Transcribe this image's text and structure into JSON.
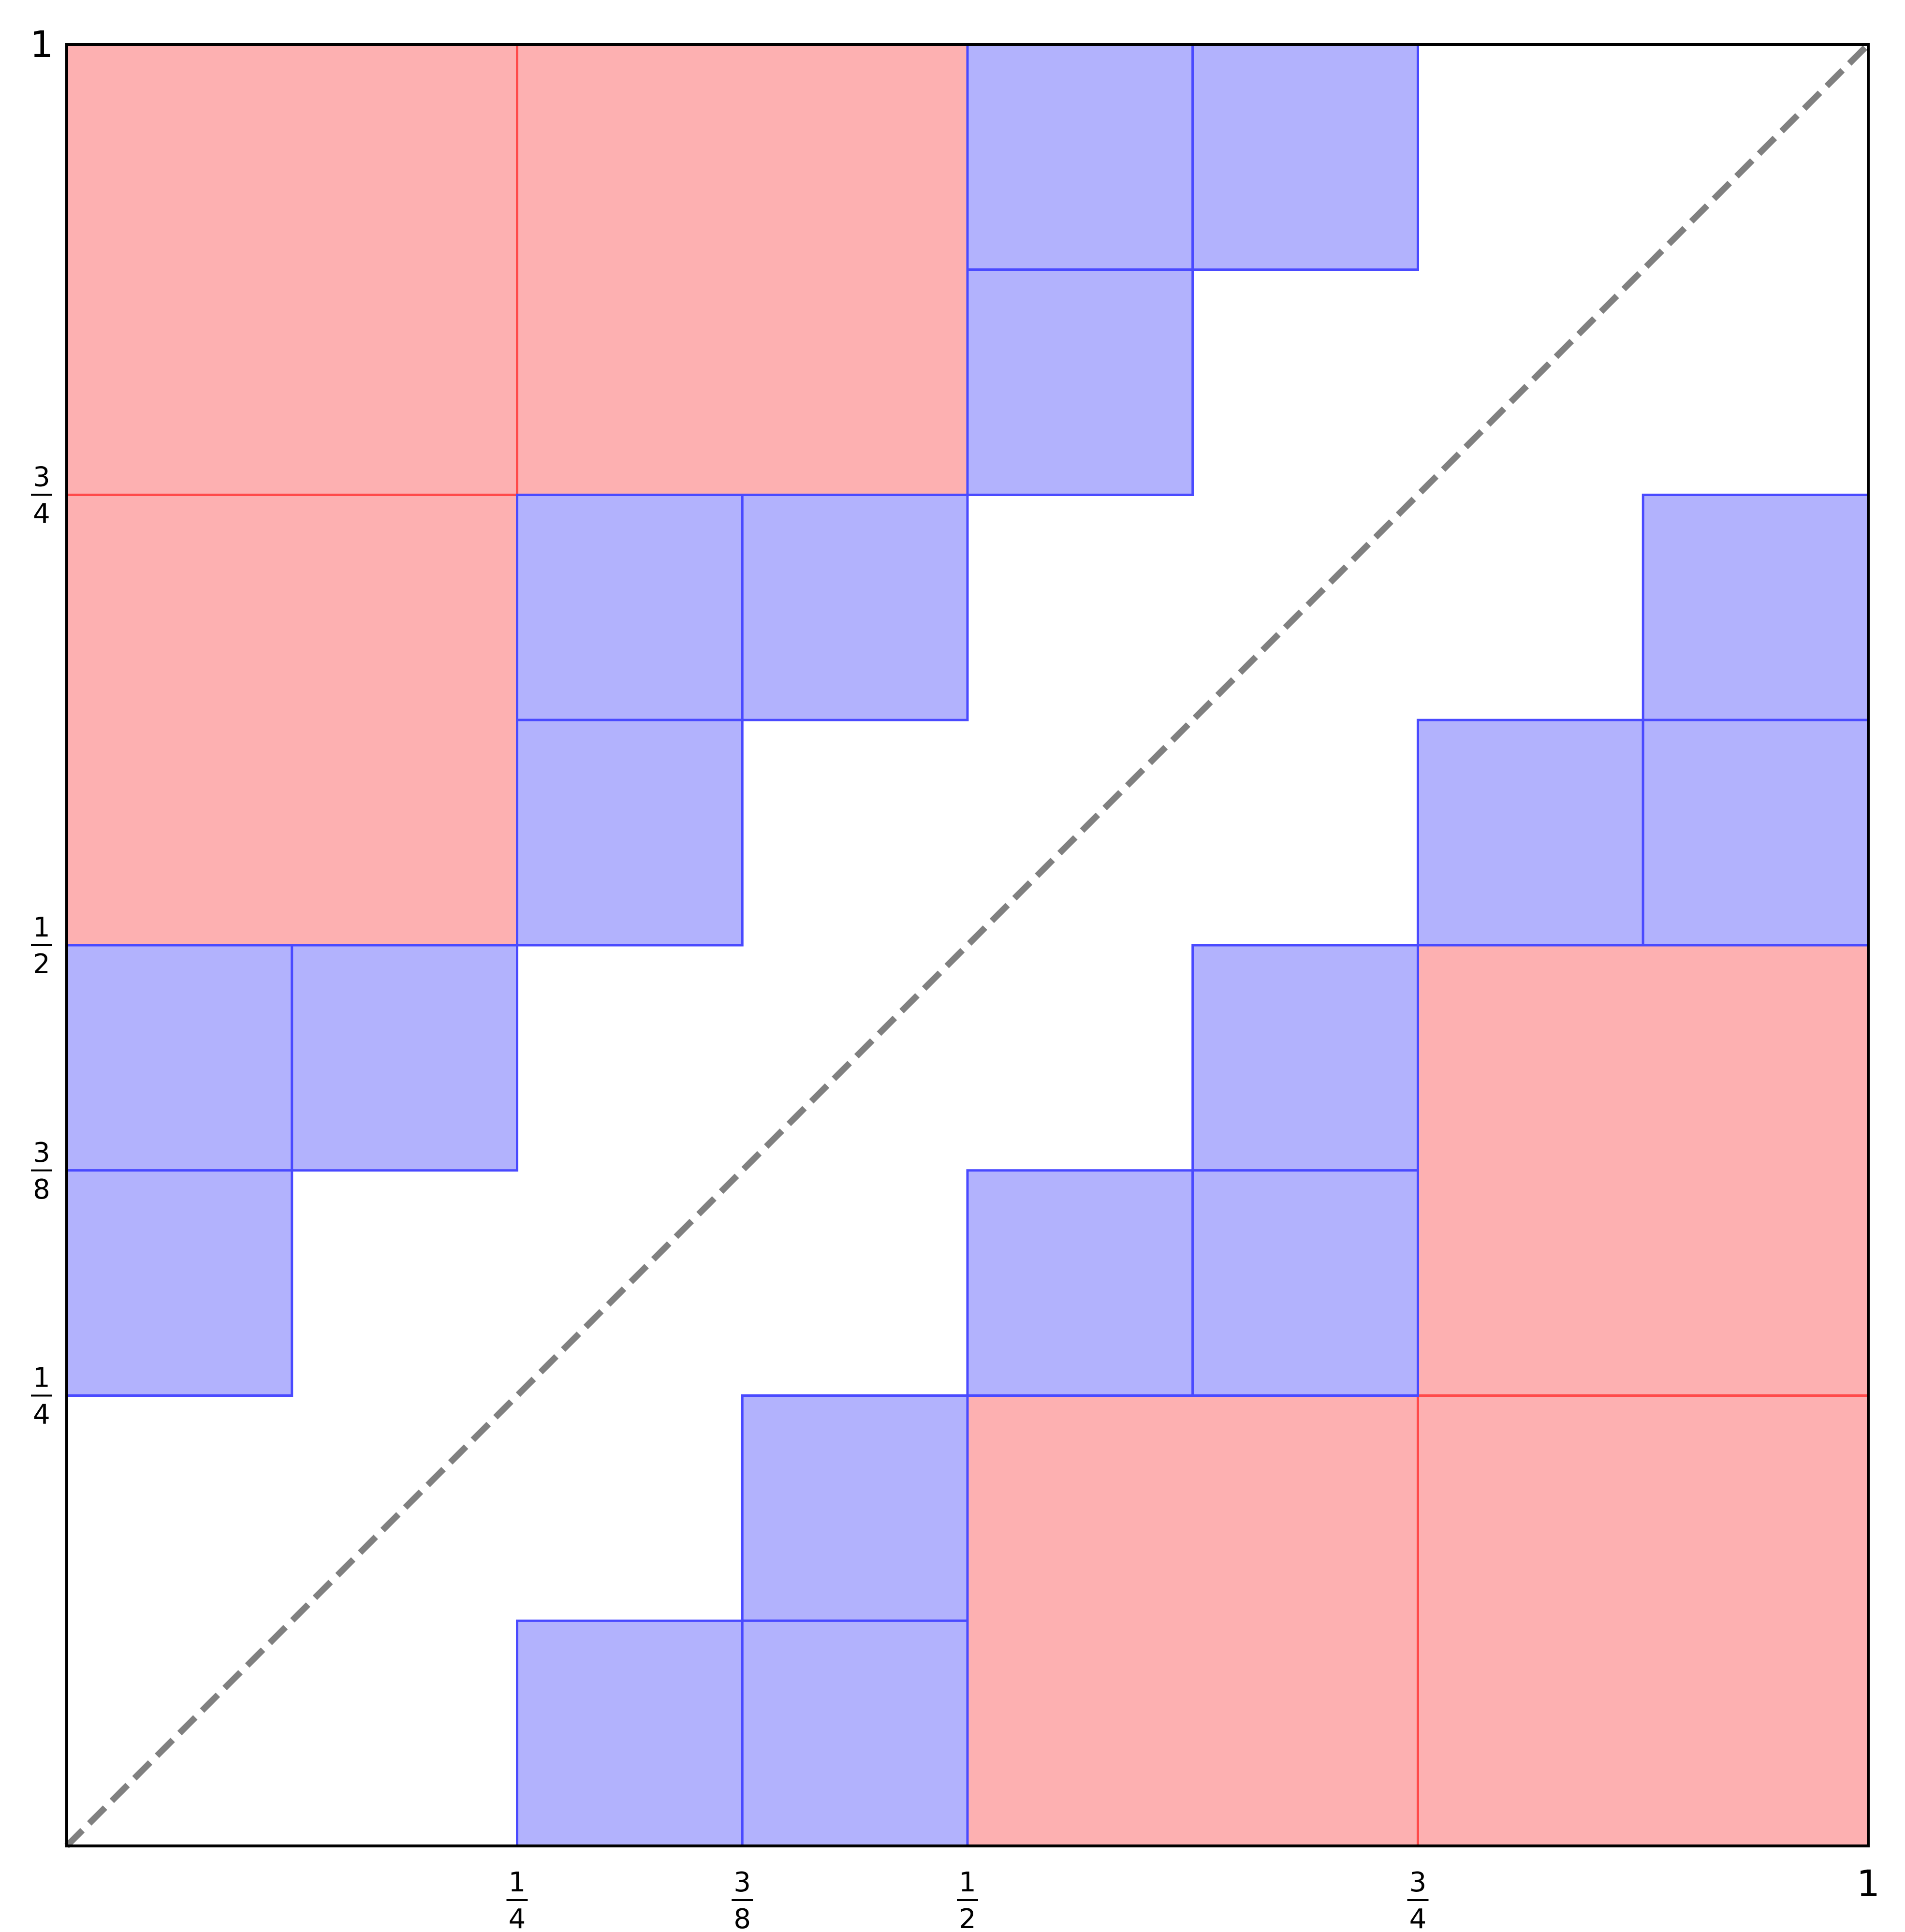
{
  "diagram": {
    "axis_min": 0,
    "axis_max": 1,
    "x_ticks": [
      {
        "value": 0.25,
        "num": "1",
        "den": "4"
      },
      {
        "value": 0.375,
        "num": "3",
        "den": "8"
      },
      {
        "value": 0.5,
        "num": "1",
        "den": "2"
      },
      {
        "value": 0.75,
        "num": "3",
        "den": "4"
      },
      {
        "value": 1,
        "label": "1"
      }
    ],
    "y_ticks": [
      {
        "value": 0.25,
        "num": "1",
        "den": "4"
      },
      {
        "value": 0.375,
        "num": "3",
        "den": "8"
      },
      {
        "value": 0.5,
        "num": "1",
        "den": "2"
      },
      {
        "value": 0.75,
        "num": "3",
        "den": "4"
      },
      {
        "value": 1,
        "label": "1"
      }
    ],
    "colors": {
      "red_fill": "#fdb0b1",
      "red_edge": "#ff4a4a",
      "blue_fill": "#b2b2fd",
      "blue_edge": "#4a4aff",
      "diagonal": "#808080",
      "frame": "#000000"
    },
    "red_squares": [
      {
        "x0": 0,
        "x1": 0.25,
        "y0": 0.75,
        "y1": 1
      },
      {
        "x0": 0.25,
        "x1": 0.5,
        "y0": 0.75,
        "y1": 1
      },
      {
        "x0": 0,
        "x1": 0.25,
        "y0": 0.5,
        "y1": 0.75
      },
      {
        "x0": 0.5,
        "x1": 0.75,
        "y0": 0,
        "y1": 0.25
      },
      {
        "x0": 0.75,
        "x1": 1,
        "y0": 0,
        "y1": 0.25
      },
      {
        "x0": 0.75,
        "x1": 1,
        "y0": 0.25,
        "y1": 0.5
      }
    ],
    "blue_squares": [
      {
        "x0": 0.5,
        "x1": 0.625,
        "y0": 0.875,
        "y1": 1
      },
      {
        "x0": 0.625,
        "x1": 0.75,
        "y0": 0.875,
        "y1": 1
      },
      {
        "x0": 0.5,
        "x1": 0.625,
        "y0": 0.75,
        "y1": 0.875
      },
      {
        "x0": 0.25,
        "x1": 0.375,
        "y0": 0.625,
        "y1": 0.75
      },
      {
        "x0": 0.375,
        "x1": 0.5,
        "y0": 0.625,
        "y1": 0.75
      },
      {
        "x0": 0.25,
        "x1": 0.375,
        "y0": 0.5,
        "y1": 0.625
      },
      {
        "x0": 0,
        "x1": 0.125,
        "y0": 0.375,
        "y1": 0.5
      },
      {
        "x0": 0.125,
        "x1": 0.25,
        "y0": 0.375,
        "y1": 0.5
      },
      {
        "x0": 0,
        "x1": 0.125,
        "y0": 0.25,
        "y1": 0.375
      },
      {
        "x0": 0.875,
        "x1": 1,
        "y0": 0.625,
        "y1": 0.75
      },
      {
        "x0": 0.75,
        "x1": 0.875,
        "y0": 0.5,
        "y1": 0.625
      },
      {
        "x0": 0.875,
        "x1": 1,
        "y0": 0.5,
        "y1": 0.625
      },
      {
        "x0": 0.625,
        "x1": 0.75,
        "y0": 0.375,
        "y1": 0.5
      },
      {
        "x0": 0.5,
        "x1": 0.625,
        "y0": 0.25,
        "y1": 0.375
      },
      {
        "x0": 0.625,
        "x1": 0.75,
        "y0": 0.25,
        "y1": 0.375
      },
      {
        "x0": 0.375,
        "x1": 0.5,
        "y0": 0.125,
        "y1": 0.25
      },
      {
        "x0": 0.25,
        "x1": 0.375,
        "y0": 0,
        "y1": 0.125
      },
      {
        "x0": 0.375,
        "x1": 0.5,
        "y0": 0,
        "y1": 0.125
      }
    ],
    "diagonal_line": {
      "style": "dashed",
      "from": [
        0,
        0
      ],
      "to": [
        1,
        1
      ]
    }
  }
}
